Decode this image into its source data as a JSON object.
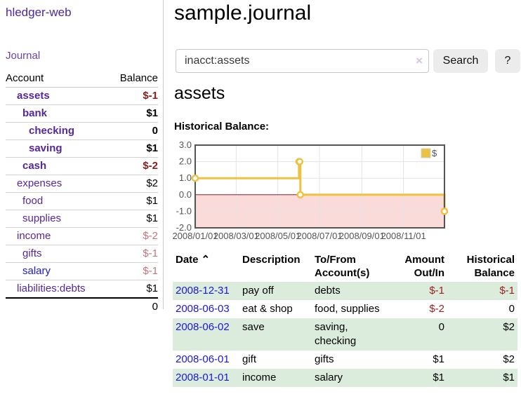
{
  "app": {
    "title": "hledger-web"
  },
  "sidebar": {
    "journal_link": "Journal",
    "headers": {
      "account": "Account",
      "balance": "Balance"
    },
    "accounts": [
      {
        "name": "assets",
        "balance": "$-1",
        "depth": 1,
        "bold": true,
        "link_color": "purple",
        "balance_style": "neg-strong"
      },
      {
        "name": "bank",
        "balance": "$1",
        "depth": 2,
        "bold": true,
        "link_color": "purple",
        "balance_style": "normal"
      },
      {
        "name": "checking",
        "balance": "0",
        "depth": 3,
        "bold": true,
        "link_color": "purple",
        "balance_style": "normal"
      },
      {
        "name": "saving",
        "balance": "$1",
        "depth": 3,
        "bold": true,
        "link_color": "purple",
        "balance_style": "normal"
      },
      {
        "name": "cash",
        "balance": "$-2",
        "depth": 2,
        "bold": true,
        "link_color": "purple",
        "balance_style": "neg-strong"
      },
      {
        "name": "expenses",
        "balance": "$2",
        "depth": 1,
        "bold": false,
        "link_color": "purple",
        "balance_style": "normal"
      },
      {
        "name": "food",
        "balance": "$1",
        "depth": 2,
        "bold": false,
        "link_color": "purple",
        "balance_style": "normal"
      },
      {
        "name": "supplies",
        "balance": "$1",
        "depth": 2,
        "bold": false,
        "link_color": "purple",
        "balance_style": "normal"
      },
      {
        "name": "income",
        "balance": "$-2",
        "depth": 1,
        "bold": false,
        "link_color": "purple",
        "balance_style": "neg-soft"
      },
      {
        "name": "gifts",
        "balance": "$-1",
        "depth": 2,
        "bold": false,
        "link_color": "purple",
        "balance_style": "neg-soft"
      },
      {
        "name": "salary",
        "balance": "$-1",
        "depth": 2,
        "bold": false,
        "link_color": "blue",
        "balance_style": "neg-soft"
      },
      {
        "name": "liabilities:debts",
        "balance": "$1",
        "depth": 1,
        "bold": false,
        "link_color": "purple",
        "balance_style": "normal"
      }
    ],
    "total": "0"
  },
  "header": {
    "title": "sample.journal"
  },
  "search": {
    "value": "inacct:assets",
    "clear_icon": "×",
    "button_label": "Search",
    "help_label": "?"
  },
  "main": {
    "heading": "assets",
    "chart_label": "Historical Balance:"
  },
  "chart_data": {
    "type": "line",
    "title": "Historical Balance",
    "step": true,
    "series": [
      {
        "name": "$",
        "color": "#edc240",
        "points": [
          [
            "2008-01-01",
            1
          ],
          [
            "2008-06-01",
            2
          ],
          [
            "2008-06-02",
            2
          ],
          [
            "2008-06-03",
            0
          ],
          [
            "2008-12-31",
            -1
          ]
        ]
      }
    ],
    "x_range": [
      "2008-01-01",
      "2008-12-31"
    ],
    "x_ticks": [
      {
        "date": "2008-01-01",
        "label": "2008/01/01"
      },
      {
        "date": "2008-03-01",
        "label": "2008/03/01"
      },
      {
        "date": "2008-05-01",
        "label": "2008/05/01"
      },
      {
        "date": "2008-07-01",
        "label": "2008/07/01"
      },
      {
        "date": "2008-09-01",
        "label": "2008/09/01"
      },
      {
        "date": "2008-11-01",
        "label": "2008/11/01"
      }
    ],
    "y_ticks": [
      {
        "v": 3,
        "label": "3.0"
      },
      {
        "v": 2,
        "label": "2.0"
      },
      {
        "v": 1,
        "label": "1.0"
      },
      {
        "v": 0,
        "label": "0.0"
      },
      {
        "v": -1,
        "label": "-1.0"
      },
      {
        "v": -2,
        "label": "-2.0"
      }
    ],
    "ylim": [
      -2,
      3
    ],
    "grid": {
      "on": true,
      "grid_color": "#e3e3e3",
      "border_color": "#545454"
    },
    "negative_region": {
      "below": 0,
      "fill": "#fbdada",
      "line_color": "#8b1d1d"
    },
    "legend": {
      "label": "$",
      "position": "top-right",
      "swatch_color": "#edc240"
    }
  },
  "register": {
    "headers": {
      "date": "Date",
      "sort_indicator": "⌃",
      "description": "Description",
      "tofrom_1": "To/From",
      "tofrom_2": "Account(s)",
      "amount_1": "Amount",
      "amount_2": "Out/In",
      "balance_1": "Historical",
      "balance_2": "Balance"
    },
    "rows": [
      {
        "date": "2008-12-31",
        "description": "pay off",
        "accounts": "debts",
        "amount": "$-1",
        "balance": "$-1",
        "amount_negative": true,
        "balance_negative": true
      },
      {
        "date": "2008-06-03",
        "description": "eat & shop",
        "accounts": "food, supplies",
        "amount": "$-2",
        "balance": "0",
        "amount_negative": true,
        "balance_negative": false
      },
      {
        "date": "2008-06-02",
        "description": "save",
        "accounts": "saving, checking",
        "amount": "0",
        "balance": "$2",
        "amount_negative": false,
        "balance_negative": false
      },
      {
        "date": "2008-06-01",
        "description": "gift",
        "accounts": "gifts",
        "amount": "$1",
        "balance": "$2",
        "amount_negative": false,
        "balance_negative": false
      },
      {
        "date": "2008-01-01",
        "description": "income",
        "accounts": "salary",
        "amount": "$1",
        "balance": "$1",
        "amount_negative": false,
        "balance_negative": false
      }
    ]
  }
}
